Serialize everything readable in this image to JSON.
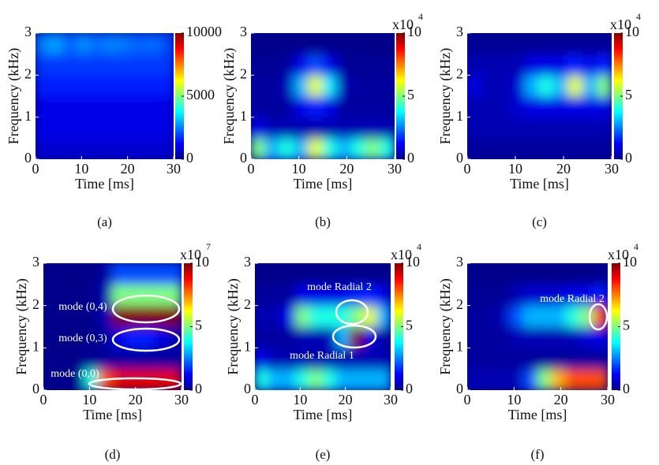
{
  "chart_data": [
    {
      "type": "heatmap",
      "caption": "(a)",
      "xlabel": "Time [ms]",
      "ylabel": "Frequency (kHz)",
      "xlim": [
        0,
        30
      ],
      "xticks": [
        0,
        10,
        20,
        30
      ],
      "ylim": [
        0,
        3
      ],
      "yticks": [
        0,
        1,
        2,
        3
      ],
      "x": [
        1.5,
        4.5,
        7.5,
        10.5,
        13.5,
        16.5,
        19.5,
        22.5,
        25.5,
        28.5
      ],
      "y": [
        0.25,
        0.75,
        1.25,
        1.75,
        2.25,
        2.75
      ],
      "z": [
        [
          800,
          800,
          800,
          800,
          800,
          800,
          800,
          800,
          800,
          800
        ],
        [
          1000,
          1000,
          1000,
          1000,
          1000,
          1000,
          1000,
          1000,
          1000,
          1000
        ],
        [
          1000,
          1000,
          1000,
          1000,
          1000,
          1000,
          1000,
          1000,
          1000,
          1000
        ],
        [
          1500,
          1500,
          1500,
          1500,
          1500,
          1500,
          1500,
          1500,
          1500,
          1500
        ],
        [
          1800,
          1800,
          1800,
          1800,
          1800,
          1800,
          1800,
          1800,
          1800,
          1800
        ],
        [
          2500,
          2800,
          2200,
          2600,
          2300,
          2500,
          2400,
          2200,
          2300,
          2000
        ]
      ],
      "colorbar": {
        "lim": [
          0,
          10000
        ],
        "ticks": [
          0,
          5000,
          10000
        ]
      }
    },
    {
      "type": "heatmap",
      "caption": "(b)",
      "xlabel": "Time [ms]",
      "ylabel": "Frequency (kHz)",
      "xlim": [
        0,
        30
      ],
      "xticks": [
        0,
        10,
        20,
        30
      ],
      "ylim": [
        0,
        3
      ],
      "yticks": [
        0,
        1,
        2,
        3
      ],
      "x": [
        1.5,
        4.5,
        7.5,
        10.5,
        13.5,
        16.5,
        19.5,
        22.5,
        25.5,
        28.5
      ],
      "y": [
        0.25,
        0.75,
        1.25,
        1.75,
        2.25,
        2.75
      ],
      "z": [
        [
          5,
          3,
          4,
          3,
          6,
          4,
          3,
          4,
          5,
          4
        ],
        [
          1,
          0.5,
          0.5,
          0.5,
          0.5,
          0.5,
          0.5,
          0.5,
          0.5,
          0.5
        ],
        [
          0.3,
          0.3,
          0.3,
          1,
          1.5,
          1,
          0.3,
          0.3,
          0.3,
          0.3
        ],
        [
          0.3,
          0.3,
          0.5,
          3,
          6,
          3.5,
          0.5,
          0.3,
          0.3,
          0.3
        ],
        [
          0.2,
          0.2,
          0.3,
          1,
          2,
          1,
          0.3,
          0.2,
          0.2,
          0.2
        ],
        [
          0.1,
          0.1,
          0.1,
          0.1,
          0.1,
          0.1,
          0.1,
          0.1,
          0.1,
          0.1
        ]
      ],
      "colorbar": {
        "lim": [
          0,
          10
        ],
        "ticks": [
          0,
          5,
          10
        ],
        "multiplier": "x10",
        "exponent": "4"
      }
    },
    {
      "type": "heatmap",
      "caption": "(c)",
      "xlabel": "Time [ms]",
      "ylabel": "Frequency (kHz)",
      "xlim": [
        0,
        30
      ],
      "xticks": [
        0,
        10,
        20,
        30
      ],
      "ylim": [
        0,
        3
      ],
      "yticks": [
        0,
        1,
        2,
        3
      ],
      "x": [
        1.5,
        4.5,
        7.5,
        10.5,
        13.5,
        16.5,
        19.5,
        22.5,
        25.5,
        28.5
      ],
      "y": [
        0.25,
        0.75,
        1.25,
        1.75,
        2.25,
        2.75
      ],
      "z": [
        [
          0.3,
          0.3,
          0.3,
          0.3,
          0.3,
          0.3,
          0.3,
          0.3,
          0.3,
          0.3
        ],
        [
          0.5,
          0.5,
          0.5,
          0.5,
          0.5,
          0.5,
          0.5,
          0.5,
          0.5,
          0.5
        ],
        [
          0.5,
          0.5,
          0.5,
          0.8,
          1,
          1,
          1,
          1,
          1,
          1
        ],
        [
          1,
          0.5,
          0.5,
          0.8,
          3,
          4,
          3,
          6,
          3,
          5
        ],
        [
          0.5,
          0.5,
          0.5,
          0.5,
          1,
          1,
          1,
          1.5,
          1,
          1.5
        ],
        [
          0.2,
          0.2,
          0.2,
          0.2,
          0.2,
          0.2,
          0.2,
          0.2,
          0.2,
          0.2
        ]
      ],
      "colorbar": {
        "lim": [
          0,
          10
        ],
        "ticks": [
          0,
          5,
          10
        ],
        "multiplier": "x10",
        "exponent": "4"
      }
    },
    {
      "type": "heatmap",
      "caption": "(d)",
      "xlabel": "Time [ms]",
      "ylabel": "Frequency (kHz)",
      "xlim": [
        0,
        30
      ],
      "xticks": [
        0,
        10,
        20,
        30
      ],
      "ylim": [
        0,
        3
      ],
      "yticks": [
        0,
        1,
        2,
        3
      ],
      "x": [
        1.5,
        4.5,
        7.5,
        10.5,
        13.5,
        16.5,
        19.5,
        22.5,
        25.5,
        28.5
      ],
      "y": [
        0.25,
        0.75,
        1.25,
        1.75,
        2.25,
        2.75
      ],
      "z": [
        [
          0.1,
          0.1,
          0.1,
          4,
          8,
          9,
          9,
          9,
          9,
          9
        ],
        [
          0.1,
          0.1,
          0.1,
          0.2,
          0.3,
          0.3,
          0.3,
          0.3,
          0.3,
          0.3
        ],
        [
          0.1,
          0.1,
          0.1,
          0.1,
          0.3,
          1,
          1.5,
          1.5,
          1,
          0.5
        ],
        [
          0.1,
          0.1,
          0.1,
          0.1,
          0.5,
          10,
          10,
          10,
          10,
          10
        ],
        [
          0.1,
          0.1,
          0.1,
          0.1,
          0.5,
          5,
          5,
          5,
          5,
          5
        ],
        [
          0.1,
          0.1,
          0.1,
          0.1,
          0.3,
          2,
          2,
          2,
          2,
          2
        ]
      ],
      "colorbar": {
        "lim": [
          0,
          10
        ],
        "ticks": [
          0,
          5,
          10
        ],
        "multiplier": "x10",
        "exponent": "7"
      },
      "annotations": [
        "mode (0,4)",
        "mode (0,3)",
        "mode (0,0)"
      ]
    },
    {
      "type": "heatmap",
      "caption": "(e)",
      "xlabel": "Time [ms]",
      "ylabel": "Frequency (kHz)",
      "xlim": [
        0,
        30
      ],
      "xticks": [
        0,
        10,
        20,
        30
      ],
      "ylim": [
        0,
        3
      ],
      "yticks": [
        0,
        1,
        2,
        3
      ],
      "x": [
        1.5,
        4.5,
        7.5,
        10.5,
        13.5,
        16.5,
        19.5,
        22.5,
        25.5,
        28.5
      ],
      "y": [
        0.25,
        0.75,
        1.25,
        1.75,
        2.25,
        2.75
      ],
      "z": [
        [
          4,
          3,
          3,
          4,
          5,
          4,
          3,
          3,
          3,
          3
        ],
        [
          1,
          0.5,
          0.5,
          0.5,
          0.5,
          0.5,
          0.5,
          0.5,
          0.5,
          0.5
        ],
        [
          0.3,
          0.3,
          0.3,
          0.5,
          0.5,
          0.5,
          3,
          10,
          1,
          0.3
        ],
        [
          0.5,
          0.5,
          1,
          5,
          4,
          4,
          4,
          5,
          6,
          3
        ],
        [
          0.3,
          0.3,
          0.3,
          1,
          1,
          1,
          1,
          1.5,
          1.5,
          1
        ],
        [
          0.1,
          0.1,
          0.1,
          0.1,
          0.1,
          0.1,
          0.1,
          0.1,
          0.1,
          0.1
        ]
      ],
      "colorbar": {
        "lim": [
          0,
          10
        ],
        "ticks": [
          0,
          5,
          10
        ],
        "multiplier": "x10",
        "exponent": "4"
      },
      "annotations": [
        "mode Radial 2",
        "mode Radial 1"
      ]
    },
    {
      "type": "heatmap",
      "caption": "(f)",
      "xlabel": "Time [ms]",
      "ylabel": "Frequency (kHz)",
      "xlim": [
        0,
        30
      ],
      "xticks": [
        0,
        10,
        20,
        30
      ],
      "ylim": [
        0,
        3
      ],
      "yticks": [
        0,
        1,
        2,
        3
      ],
      "x": [
        1.5,
        4.5,
        7.5,
        10.5,
        13.5,
        16.5,
        19.5,
        22.5,
        25.5,
        28.5
      ],
      "y": [
        0.25,
        0.75,
        1.25,
        1.75,
        2.25,
        2.75
      ],
      "z": [
        [
          0.5,
          0.5,
          0.5,
          0.5,
          2,
          5,
          7,
          8,
          8,
          8
        ],
        [
          0.3,
          0.3,
          0.3,
          0.3,
          0.3,
          0.3,
          0.3,
          0.3,
          0.3,
          0.3
        ],
        [
          0.3,
          0.3,
          0.3,
          0.5,
          0.5,
          0.5,
          0.5,
          0.5,
          0.8,
          1
        ],
        [
          0.3,
          0.3,
          0.5,
          2,
          3,
          3,
          3,
          4,
          5,
          8
        ],
        [
          0.2,
          0.2,
          0.2,
          0.5,
          0.8,
          0.8,
          0.8,
          1,
          1,
          1.5
        ],
        [
          0.1,
          0.1,
          0.1,
          0.1,
          0.1,
          0.1,
          0.1,
          0.1,
          0.1,
          0.1
        ]
      ],
      "colorbar": {
        "lim": [
          0,
          10
        ],
        "ticks": [
          0,
          5,
          10
        ],
        "multiplier": "x10",
        "exponent": "4"
      },
      "annotations": [
        "mode Radial 2"
      ]
    }
  ]
}
